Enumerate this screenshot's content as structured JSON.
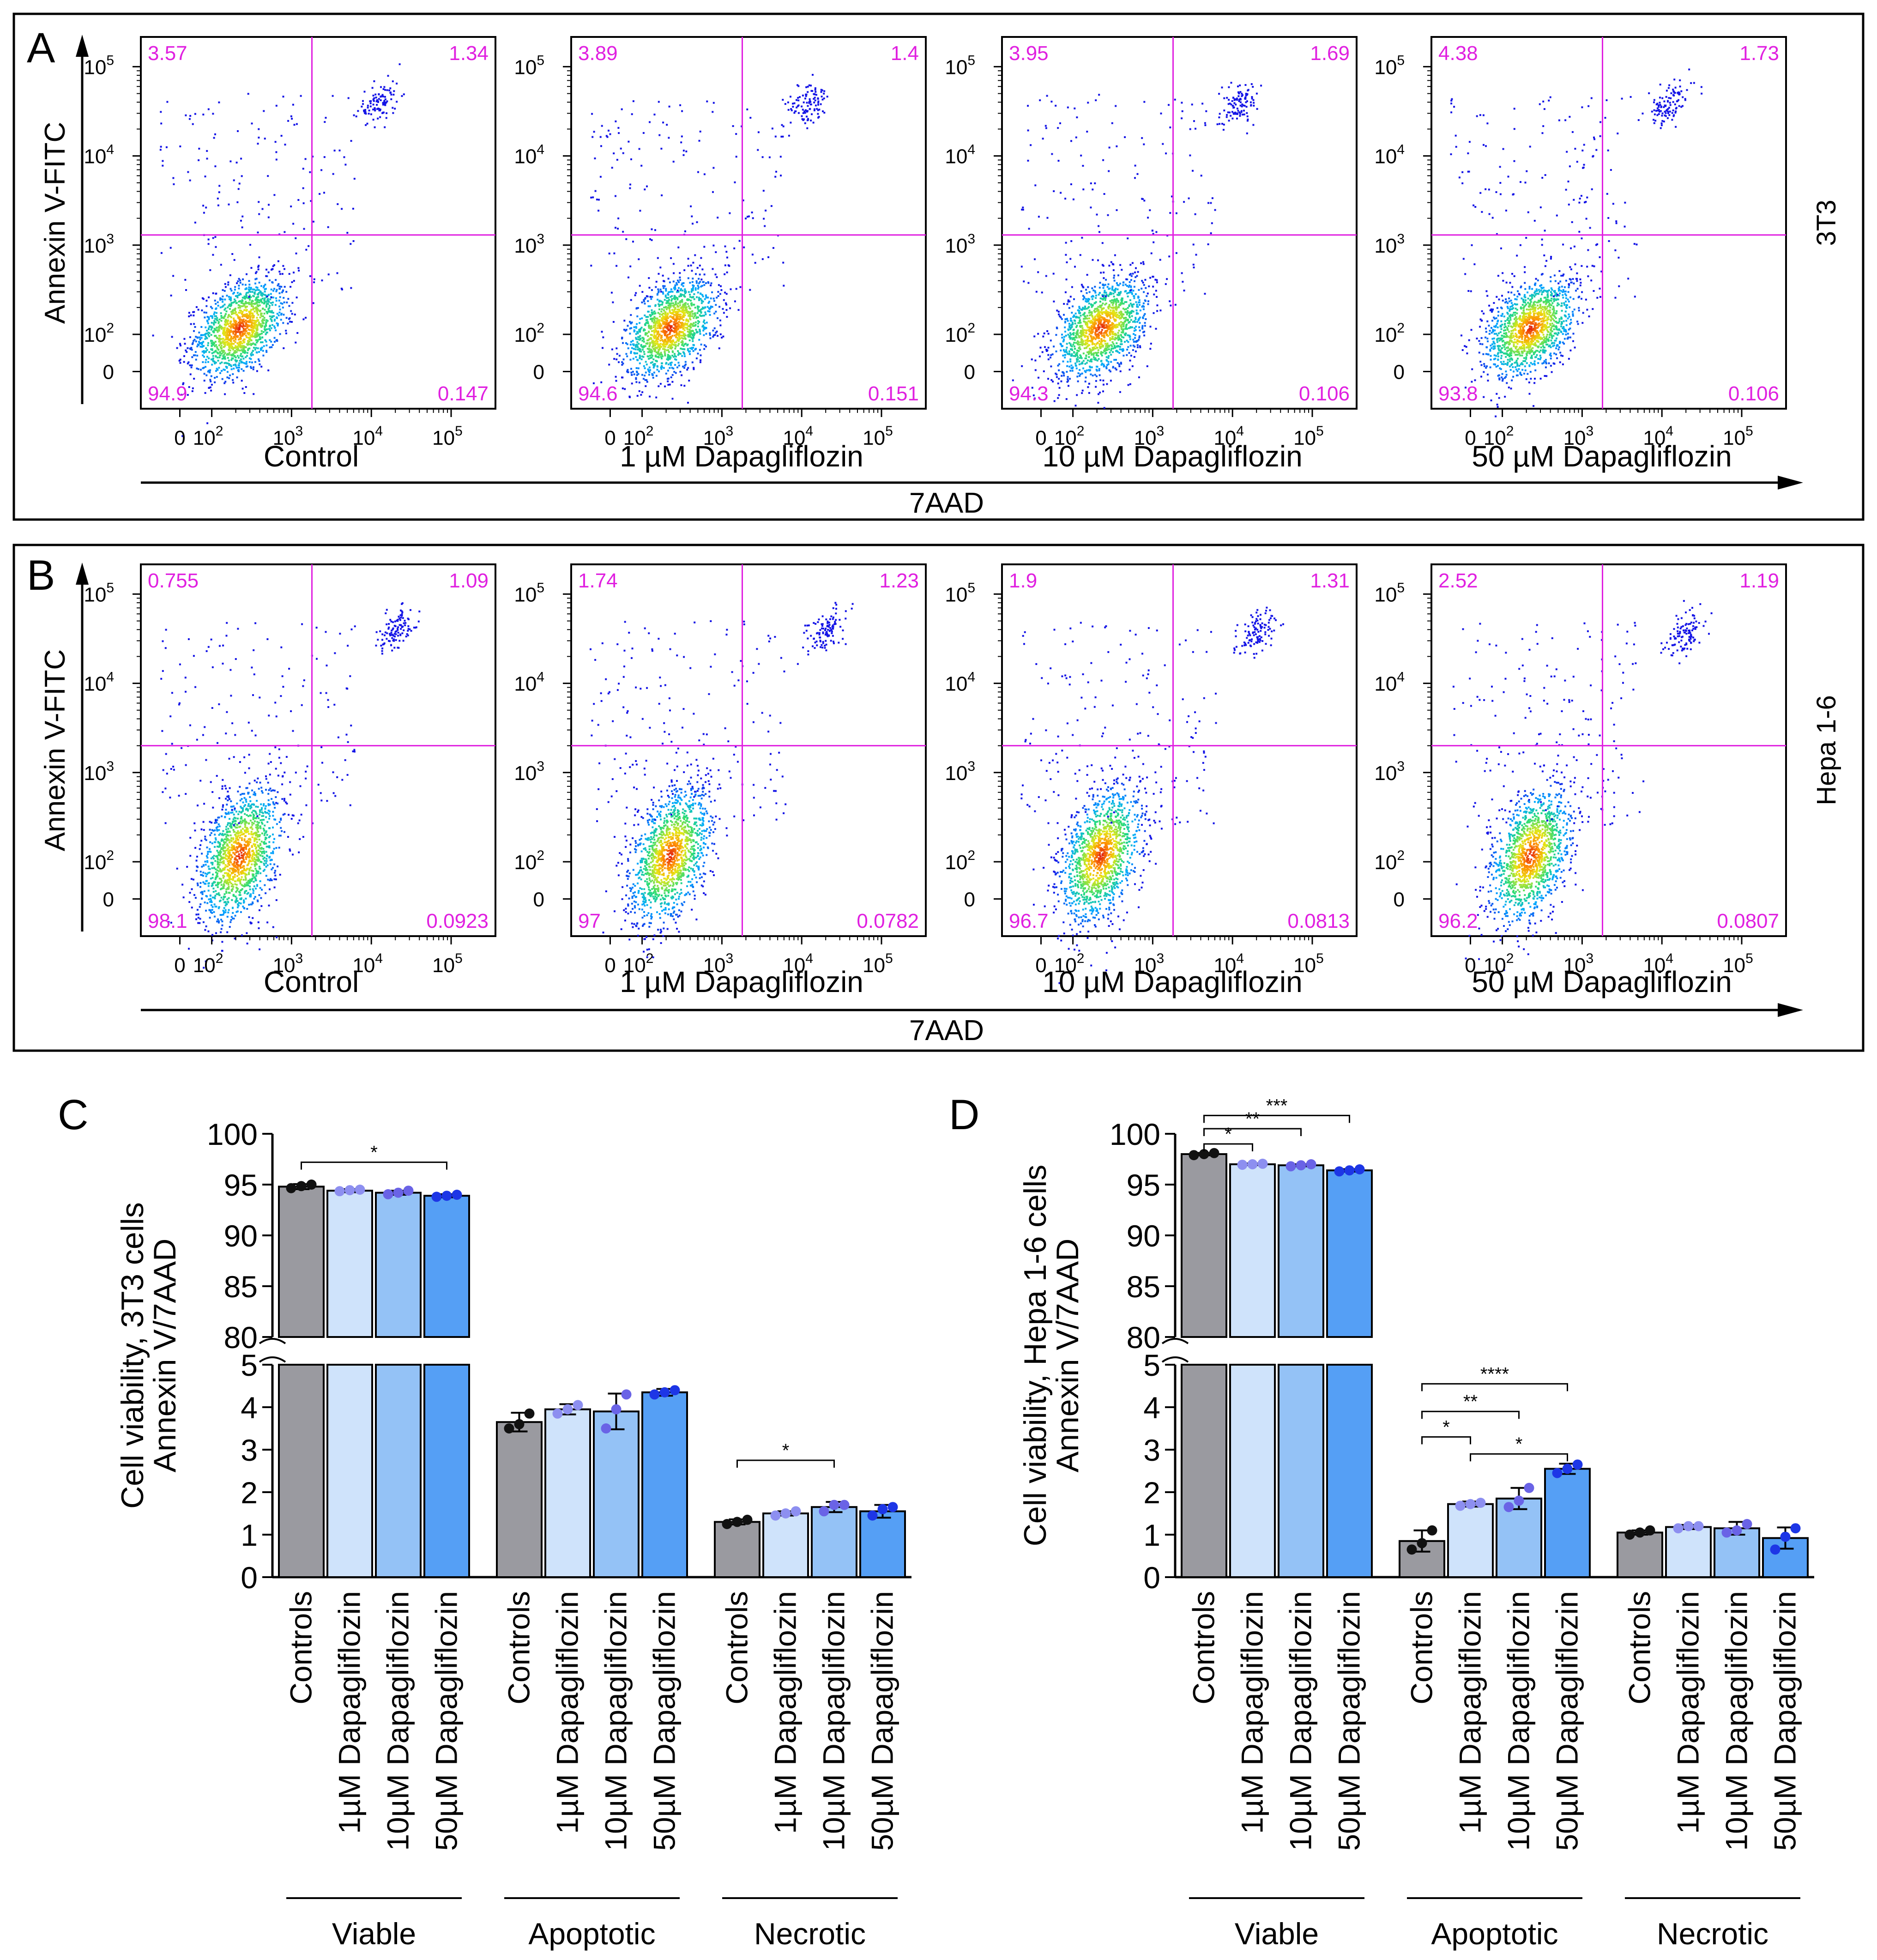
{
  "colors": {
    "gate": "#e020e0",
    "quadrant_text": "#e020e0",
    "controls": "#9a9aa0",
    "d1": "#cfe3fb",
    "d10": "#94c2f6",
    "d50": "#559ff5",
    "dots_controls": "#111111",
    "dots_d1": "#8d8ff0",
    "dots_d10": "#6a63e6",
    "dots_d50": "#1d36e6",
    "frame": "#000000"
  },
  "flow_panels": [
    {
      "letter": "A",
      "y_axis_label": "Annexin V-FITC",
      "x_axis_label": "7AAD",
      "cell_line": "3T3",
      "gate_y_value": 1300,
      "y_tick_labels": [
        "10",
        "10",
        "10",
        "10",
        "0"
      ],
      "y_tick_exponents": [
        "5",
        "4",
        "3",
        "2",
        ""
      ],
      "x_tick_labels": [
        "0",
        "10",
        "10",
        "10",
        "10"
      ],
      "x_tick_exponents": [
        "",
        "2",
        "3",
        "4",
        "5"
      ],
      "plots": [
        {
          "condition": "Control",
          "ul": "3.57",
          "ur": "1.34",
          "ll": "94.9",
          "lr": "0.147"
        },
        {
          "condition": "1 µM Dapagliflozin",
          "ul": "3.89",
          "ur": "1.4",
          "ll": "94.6",
          "lr": "0.151"
        },
        {
          "condition": "10 µM Dapagliflozin",
          "ul": "3.95",
          "ur": "1.69",
          "ll": "94.3",
          "lr": "0.106"
        },
        {
          "condition": "50 µM Dapagliflozin",
          "ul": "4.38",
          "ur": "1.73",
          "ll": "93.8",
          "lr": "0.106"
        }
      ]
    },
    {
      "letter": "B",
      "y_axis_label": "Annexin V-FITC",
      "x_axis_label": "7AAD",
      "cell_line": "Hepa 1-6",
      "gate_y_value": 2000,
      "y_tick_labels": [
        "10",
        "10",
        "10",
        "10",
        "0"
      ],
      "y_tick_exponents": [
        "5",
        "4",
        "3",
        "2",
        ""
      ],
      "x_tick_labels": [
        "0",
        "10",
        "10",
        "10",
        "10"
      ],
      "x_tick_exponents": [
        "",
        "2",
        "3",
        "4",
        "5"
      ],
      "plots": [
        {
          "condition": "Control",
          "ul": "0.755",
          "ur": "1.09",
          "ll": "98.1",
          "lr": "0.0923"
        },
        {
          "condition": "1 µM Dapagliflozin",
          "ul": "1.74",
          "ur": "1.23",
          "ll": "97",
          "lr": "0.0782"
        },
        {
          "condition": "10 µM Dapagliflozin",
          "ul": "1.9",
          "ur": "1.31",
          "ll": "96.7",
          "lr": "0.0813"
        },
        {
          "condition": "50 µM Dapagliflozin",
          "ul": "2.52",
          "ur": "1.19",
          "ll": "96.2",
          "lr": "0.0807"
        }
      ]
    }
  ],
  "chart_data": [
    {
      "type": "bar",
      "letter": "C",
      "ylabel_line1": "Cell viability, 3T3 cells",
      "ylabel_line2": "Annexin V/7AAD",
      "axis_break": {
        "lower": [
          0,
          5
        ],
        "upper": [
          80,
          100
        ]
      },
      "y_ticks_upper": [
        "80",
        "85",
        "90",
        "95",
        "100"
      ],
      "y_ticks_lower": [
        "0",
        "1",
        "2",
        "3",
        "4",
        "5"
      ],
      "categories": [
        "Controls",
        "1µM Dapagliflozin",
        "10µM Dapagliflozin",
        "50µM Dapagliflozin"
      ],
      "groups": [
        {
          "name": "Viable",
          "values": [
            94.8,
            94.4,
            94.2,
            93.9
          ],
          "errors": [
            0.25,
            0.15,
            0.2,
            0.15
          ],
          "points": [
            [
              94.65,
              94.85,
              95.0
            ],
            [
              94.35,
              94.45,
              94.5
            ],
            [
              94.05,
              94.2,
              94.4
            ],
            [
              93.8,
              93.9,
              94.0
            ]
          ]
        },
        {
          "name": "Apoptotic",
          "values": [
            3.65,
            3.95,
            3.9,
            4.35
          ],
          "errors": [
            0.22,
            0.12,
            0.42,
            0.08
          ],
          "points": [
            [
              3.5,
              3.6,
              3.85
            ],
            [
              3.85,
              3.95,
              4.05
            ],
            [
              3.5,
              3.95,
              4.3
            ],
            [
              4.3,
              4.35,
              4.4
            ]
          ]
        },
        {
          "name": "Necrotic",
          "values": [
            1.3,
            1.5,
            1.65,
            1.55
          ],
          "errors": [
            0.06,
            0.05,
            0.12,
            0.15
          ],
          "points": [
            [
              1.25,
              1.3,
              1.35
            ],
            [
              1.45,
              1.5,
              1.55
            ],
            [
              1.55,
              1.7,
              1.7
            ],
            [
              1.45,
              1.6,
              1.65
            ]
          ]
        }
      ],
      "significance": [
        {
          "group": "Viable",
          "from": 0,
          "to": 3,
          "label": "*",
          "y": 97.2
        },
        {
          "group": "Necrotic",
          "from": 0,
          "to": 2,
          "label": "*",
          "y": 2.75
        }
      ]
    },
    {
      "type": "bar",
      "letter": "D",
      "ylabel_line1": "Cell viability, Hepa 1-6 cells",
      "ylabel_line2": "Annexin V/7AAD",
      "axis_break": {
        "lower": [
          0,
          5
        ],
        "upper": [
          80,
          100
        ]
      },
      "y_ticks_upper": [
        "80",
        "85",
        "90",
        "95",
        "100"
      ],
      "y_ticks_lower": [
        "0",
        "1",
        "2",
        "3",
        "4",
        "5"
      ],
      "categories": [
        "Controls",
        "1µM Dapagliflozin",
        "10µM Dapagliflozin",
        "50µM Dapagliflozin"
      ],
      "groups": [
        {
          "name": "Viable",
          "values": [
            98.0,
            97.0,
            96.9,
            96.4
          ],
          "errors": [
            0.12,
            0.08,
            0.1,
            0.12
          ],
          "points": [
            [
              97.9,
              98.0,
              98.1
            ],
            [
              96.95,
              97.0,
              97.05
            ],
            [
              96.8,
              96.9,
              97.0
            ],
            [
              96.3,
              96.4,
              96.5
            ]
          ]
        },
        {
          "name": "Apoptotic",
          "values": [
            0.85,
            1.72,
            1.85,
            2.55
          ],
          "errors": [
            0.25,
            0.06,
            0.25,
            0.12
          ],
          "points": [
            [
              0.65,
              0.8,
              1.1
            ],
            [
              1.68,
              1.72,
              1.75
            ],
            [
              1.65,
              1.8,
              2.1
            ],
            [
              2.45,
              2.55,
              2.65
            ]
          ]
        },
        {
          "name": "Necrotic",
          "values": [
            1.05,
            1.18,
            1.15,
            0.92
          ],
          "errors": [
            0.05,
            0.05,
            0.15,
            0.25
          ],
          "points": [
            [
              1.0,
              1.05,
              1.1
            ],
            [
              1.15,
              1.2,
              1.2
            ],
            [
              1.05,
              1.1,
              1.25
            ],
            [
              0.65,
              0.95,
              1.15
            ]
          ]
        }
      ],
      "significance": [
        {
          "group": "Viable",
          "from": 0,
          "to": 1,
          "label": "*",
          "y": 99.0
        },
        {
          "group": "Viable",
          "from": 0,
          "to": 2,
          "label": "**",
          "y": 100.5
        },
        {
          "group": "Viable",
          "from": 0,
          "to": 3,
          "label": "***",
          "y": 101.8
        },
        {
          "group": "Apoptotic",
          "from": 0,
          "to": 1,
          "label": "*",
          "y": 3.3
        },
        {
          "group": "Apoptotic",
          "from": 0,
          "to": 2,
          "label": "**",
          "y": 3.9
        },
        {
          "group": "Apoptotic",
          "from": 0,
          "to": 3,
          "label": "****",
          "y": 4.55
        },
        {
          "group": "Apoptotic",
          "from": 1,
          "to": 3,
          "label": "*",
          "y": 2.9
        }
      ]
    }
  ]
}
